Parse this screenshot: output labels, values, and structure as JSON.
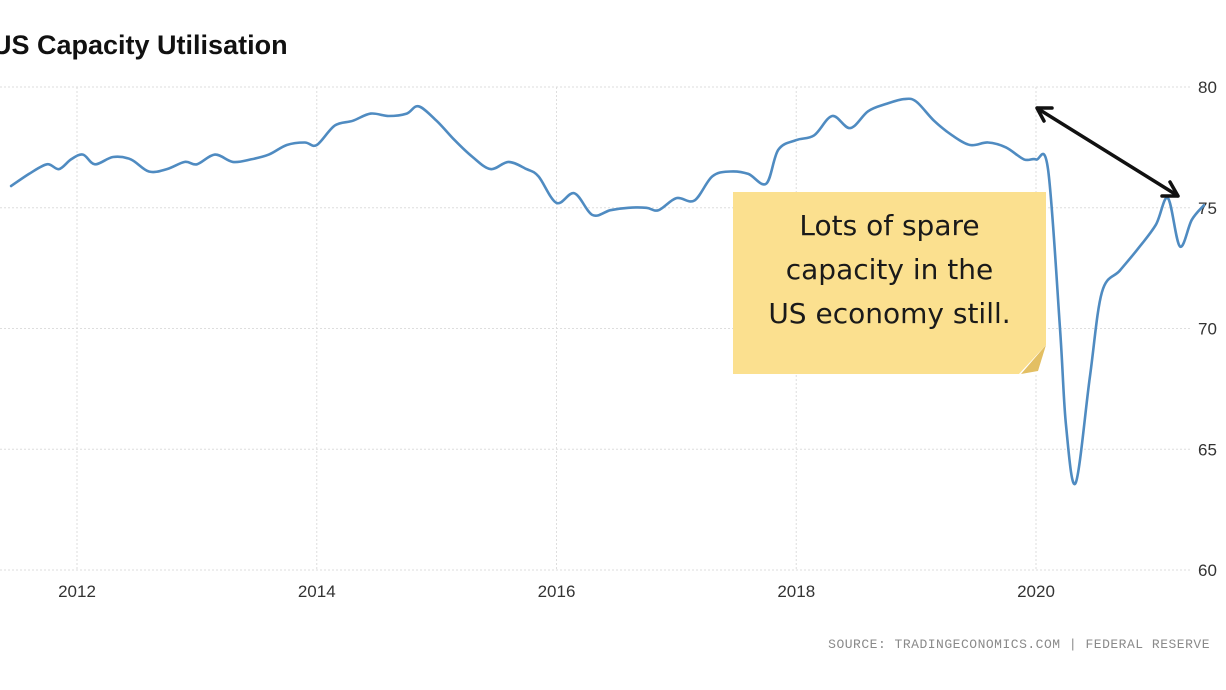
{
  "title": "US Capacity Utilisation",
  "source": "SOURCE: TRADINGECONOMICS.COM | FEDERAL RESERVE",
  "annotation": {
    "text": "Lots of spare\ncapacity in the\nUS economy still."
  },
  "colors": {
    "line": "#4f8bc1",
    "note": "#fbe08f",
    "grid": "#dedede",
    "arrow": "#111111"
  },
  "chart_data": {
    "type": "line",
    "title": "US Capacity Utilisation",
    "xlabel": "",
    "ylabel": "",
    "xlim": [
      2011.4,
      2021.5
    ],
    "ylim": [
      60,
      80
    ],
    "x_ticks": [
      2012,
      2014,
      2016,
      2018,
      2020
    ],
    "x_tick_labels": [
      "2012",
      "2014",
      "2016",
      "2018",
      "2020"
    ],
    "y_ticks": [
      60,
      65,
      70,
      75,
      80
    ],
    "y_tick_labels": [
      "60",
      "65",
      "70",
      "75",
      "80"
    ],
    "y_axis_position": "right",
    "grid": true,
    "series": [
      {
        "name": "",
        "x": [
          2011.45,
          2011.6,
          2011.75,
          2011.85,
          2011.95,
          2012.05,
          2012.15,
          2012.3,
          2012.45,
          2012.6,
          2012.75,
          2012.9,
          2013.0,
          2013.15,
          2013.3,
          2013.45,
          2013.6,
          2013.75,
          2013.9,
          2014.0,
          2014.15,
          2014.3,
          2014.45,
          2014.6,
          2014.75,
          2014.85,
          2015.0,
          2015.15,
          2015.3,
          2015.45,
          2015.6,
          2015.75,
          2015.85,
          2016.0,
          2016.15,
          2016.3,
          2016.45,
          2016.6,
          2016.75,
          2016.85,
          2017.0,
          2017.15,
          2017.3,
          2017.45,
          2017.6,
          2017.75,
          2017.85,
          2018.0,
          2018.15,
          2018.3,
          2018.45,
          2018.6,
          2018.75,
          2018.9,
          2019.0,
          2019.15,
          2019.3,
          2019.45,
          2019.6,
          2019.75,
          2019.9,
          2020.0,
          2020.1,
          2020.2,
          2020.25,
          2020.33,
          2020.45,
          2020.55,
          2020.7,
          2020.85,
          2021.0,
          2021.1,
          2021.2,
          2021.3,
          2021.4
        ],
        "values": [
          75.9,
          76.4,
          76.8,
          76.6,
          77.0,
          77.2,
          76.8,
          77.1,
          77.0,
          76.5,
          76.6,
          76.9,
          76.8,
          77.2,
          76.9,
          77.0,
          77.2,
          77.6,
          77.7,
          77.6,
          78.4,
          78.6,
          78.9,
          78.8,
          78.9,
          79.2,
          78.6,
          77.8,
          77.1,
          76.6,
          76.9,
          76.6,
          76.3,
          75.2,
          75.6,
          74.7,
          74.9,
          75.0,
          75.0,
          74.9,
          75.4,
          75.3,
          76.3,
          76.5,
          76.4,
          76.0,
          77.4,
          77.8,
          78.0,
          78.8,
          78.3,
          79.0,
          79.3,
          79.5,
          79.4,
          78.6,
          78.0,
          77.6,
          77.7,
          77.5,
          77.0,
          77.0,
          76.6,
          70.0,
          66.0,
          63.6,
          68.0,
          71.5,
          72.4,
          73.3,
          74.3,
          75.4,
          73.4,
          74.5,
          75.1
        ]
      }
    ]
  }
}
